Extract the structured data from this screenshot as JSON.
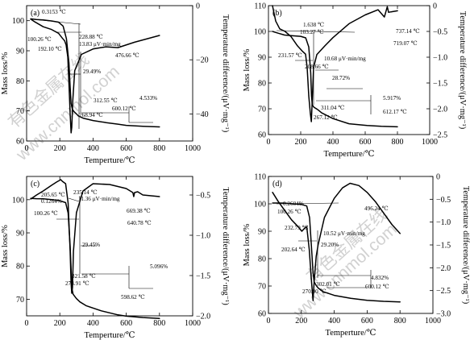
{
  "watermark": {
    "cn": "有色金属在线",
    "url": "www.cnnmol.com"
  },
  "chart_data": [
    {
      "type": "line",
      "panel_label": "(a)",
      "xlabel": "Temperture/℃",
      "ylabel_left": "Mass loss/%",
      "ylabel_right": "Temperature difference/(μV·mg⁻¹)",
      "xlim": [
        0,
        1000
      ],
      "x_ticks": [
        0,
        200,
        400,
        600,
        800,
        1000
      ],
      "ylim_left": [
        60,
        105
      ],
      "y_ticks_left": [
        60,
        70,
        80,
        90,
        100
      ],
      "ylim_right": [
        -50,
        0
      ],
      "y_ticks_right": [
        0,
        -20,
        -40
      ],
      "y_tick_labels_right": [
        "0",
        "−20",
        "−40"
      ],
      "series": [
        {
          "role": "mass",
          "x": [
            25,
            60,
            100,
            150,
            192,
            220,
            240,
            255,
            262,
            268,
            275,
            285,
            300,
            312,
            340,
            400,
            480,
            550,
            600,
            700,
            800
          ],
          "y": [
            100.6,
            100.4,
            100.26,
            99.9,
            99.5,
            98.2,
            94.0,
            86.0,
            78.0,
            72.5,
            70.6,
            69.8,
            69.0,
            68.3,
            67.6,
            66.8,
            66.1,
            65.6,
            65.2,
            64.9,
            64.7
          ]
        },
        {
          "role": "dta",
          "x": [
            25,
            50,
            100,
            150,
            192,
            215,
            229,
            238,
            248,
            256,
            262,
            268,
            272,
            278,
            290,
            330,
            400,
            477,
            550,
            650,
            800
          ],
          "y": [
            -5.0,
            -6.0,
            -7.8,
            -8.8,
            -10.2,
            -12.0,
            -13.0,
            -14.5,
            -19.0,
            -30.0,
            -40.0,
            -47.0,
            -45.0,
            -35.0,
            -24.0,
            -18.0,
            -16.0,
            -15.2,
            -15.5,
            -13.5,
            -11.0
          ]
        }
      ],
      "annotations": [
        "0.3153 ℃",
        "100.26 ℃",
        "192.10 ℃",
        "228.88 ℃",
        "13.83 μV·min/mg",
        "476.66 ℃",
        "29.49%",
        "268.94 ℃",
        "312.55 ℃",
        "4.533%",
        "600.12 ℃"
      ]
    },
    {
      "type": "line",
      "panel_label": "(b)",
      "xlabel": "Temperture/℃",
      "ylabel_left": "Mass loss/%",
      "ylabel_right": "Temperature difference/(μV·mg⁻¹)",
      "xlim": [
        0,
        1000
      ],
      "x_ticks": [
        0,
        200,
        400,
        600,
        800,
        1000
      ],
      "ylim_left": [
        60,
        110
      ],
      "y_ticks_left": [
        60,
        70,
        80,
        90,
        100,
        110
      ],
      "ylim_right": [
        -2.5,
        0
      ],
      "y_ticks_right": [
        0,
        -0.5,
        -1.0,
        -1.5,
        -2.0,
        -2.5
      ],
      "y_tick_labels_right": [
        "0",
        "−0.5",
        "−1.0",
        "−1.5",
        "−2.0",
        "−2.5"
      ],
      "series": [
        {
          "role": "mass",
          "x": [
            25,
            60,
            100,
            150,
            200,
            231,
            250,
            262,
            267,
            272,
            282,
            300,
            311,
            330,
            400,
            500,
            612,
            700,
            800
          ],
          "y": [
            100.0,
            99.3,
            98.6,
            98.3,
            98.1,
            97.5,
            94.0,
            84.0,
            75.0,
            71.5,
            70.6,
            69.9,
            69.4,
            68.4,
            66.2,
            64.2,
            63.5,
            63.2,
            63.0
          ]
        },
        {
          "role": "dta",
          "x": [
            25,
            45,
            70,
            103,
            140,
            180,
            209,
            230,
            240,
            250,
            260,
            266,
            272,
            280,
            300,
            350,
            400,
            500,
            600,
            680,
            719,
            728,
            737,
            745,
            760,
            800
          ],
          "y": [
            0.0,
            -0.3,
            -0.45,
            -0.5,
            -0.6,
            -0.78,
            -0.88,
            -0.94,
            -1.2,
            -1.75,
            -2.1,
            -2.25,
            -1.8,
            -1.2,
            -0.95,
            -0.78,
            -0.62,
            -0.35,
            -0.18,
            -0.08,
            -0.22,
            -0.12,
            -0.02,
            -0.13,
            -0.12,
            -0.1
          ]
        }
      ],
      "annotations": [
        "1.638 ℃",
        "103.27 ℃",
        "231.57 ℃",
        "208.66 ℃",
        "10.68 μV·min/mg",
        "28.72%",
        "737.14 ℃",
        "719.07 ℃",
        "311.04 ℃",
        "267.12 ℃",
        "5.917%",
        "612.17 ℃"
      ]
    },
    {
      "type": "line",
      "panel_label": "(c)",
      "xlabel": "Temperture/℃",
      "ylabel_left": "Mass loss/%",
      "ylabel_right": "Temperature difference/(μV·mg⁻¹)",
      "xlim": [
        0,
        1000
      ],
      "x_ticks": [
        0,
        200,
        400,
        600,
        800,
        1000
      ],
      "ylim_left": [
        65,
        107
      ],
      "y_ticks_left": [
        70,
        80,
        90,
        100
      ],
      "ylim_right": [
        -2.0,
        -0.27
      ],
      "y_ticks_right": [
        -0.5,
        -1.0,
        -1.5,
        -2.0
      ],
      "y_tick_labels_right": [
        "−0.5",
        "−1.0",
        "−1.5",
        "−2.0"
      ],
      "series": [
        {
          "role": "mass",
          "x": [
            25,
            60,
            100,
            150,
            200,
            235,
            250,
            262,
            270,
            274,
            280,
            300,
            321,
            360,
            450,
            550,
            600,
            700,
            800
          ],
          "y": [
            100.4,
            100.3,
            100.26,
            100.0,
            99.7,
            99.1,
            96.0,
            86.0,
            77.0,
            73.0,
            71.5,
            70.2,
            69.2,
            68.0,
            66.5,
            65.3,
            64.9,
            64.5,
            64.2
          ]
        },
        {
          "role": "dta",
          "x": [
            25,
            60,
            100,
            150,
            180,
            206,
            215,
            235,
            250,
            262,
            268,
            272,
            276,
            282,
            300,
            340,
            400,
            500,
            600,
            640,
            645,
            650,
            669,
            700,
            800
          ],
          "y": [
            -0.55,
            -0.5,
            -0.45,
            -0.38,
            -0.34,
            -0.31,
            -0.33,
            -0.36,
            -0.6,
            -1.2,
            -1.6,
            -1.72,
            -1.65,
            -1.2,
            -0.72,
            -0.45,
            -0.36,
            -0.37,
            -0.42,
            -0.47,
            -0.52,
            -0.47,
            -0.46,
            -0.5,
            -0.52
          ]
        }
      ],
      "annotations": [
        "205.65 ℃",
        "235.14 ℃",
        "11.36 μV·min/mg",
        "0.1264%",
        "100.26 ℃",
        "669.38 ℃",
        "640.78 ℃",
        "29.45%",
        "5.096%",
        "321.58 ℃",
        "273.91 ℃",
        "598.62 ℃"
      ]
    },
    {
      "type": "line",
      "panel_label": "(d)",
      "xlabel": "Temperture/℃",
      "ylabel_left": "Mass loss/%",
      "ylabel_right": "Temperature difference/(μV·mg⁻¹)",
      "xlim": [
        0,
        1000
      ],
      "x_ticks": [
        0,
        200,
        400,
        600,
        800,
        1000
      ],
      "ylim_left": [
        60,
        110
      ],
      "y_ticks_left": [
        60,
        70,
        80,
        90,
        100,
        110
      ],
      "ylim_right": [
        -3.0,
        0
      ],
      "y_ticks_right": [
        0,
        -0.5,
        -1.0,
        -1.5,
        -2.0,
        -2.5,
        -3.0
      ],
      "y_tick_labels_right": [
        "0",
        "−0.5",
        "−1.0",
        "−1.5",
        "−2.0",
        "−2.5",
        "−3.0"
      ],
      "series": [
        {
          "role": "mass",
          "x": [
            25,
            60,
            100,
            150,
            200,
            233,
            250,
            262,
            271,
            278,
            290,
            302,
            330,
            400,
            500,
            600,
            700,
            800
          ],
          "y": [
            100.3,
            100.3,
            100.26,
            100.0,
            99.8,
            99.2,
            95.0,
            84.0,
            75.0,
            71.5,
            70.2,
            69.3,
            68.0,
            66.6,
            65.5,
            64.8,
            64.4,
            64.2
          ]
        },
        {
          "role": "dta",
          "x": [
            25,
            60,
            100,
            140,
            180,
            203,
            215,
            233,
            248,
            262,
            271,
            278,
            290,
            302,
            340,
            400,
            450,
            496,
            550,
            600,
            650,
            700,
            750,
            800
          ],
          "y": [
            -0.35,
            -0.55,
            -0.75,
            -0.95,
            -1.1,
            -1.2,
            -1.15,
            -1.1,
            -1.6,
            -2.3,
            -2.72,
            -2.3,
            -1.75,
            -1.5,
            -0.9,
            -0.48,
            -0.25,
            -0.15,
            -0.2,
            -0.35,
            -0.55,
            -0.8,
            -1.05,
            -1.25
          ]
        }
      ],
      "annotations": [
        "0.2604%",
        "100.26 ℃",
        "496.24 ℃",
        "232.79 ℃",
        "10.52 μV·min/mg",
        "202.64 ℃",
        "29.20%",
        "302.01 ℃",
        "270.90 ℃",
        "4.832%",
        "600.12 ℃"
      ]
    }
  ]
}
